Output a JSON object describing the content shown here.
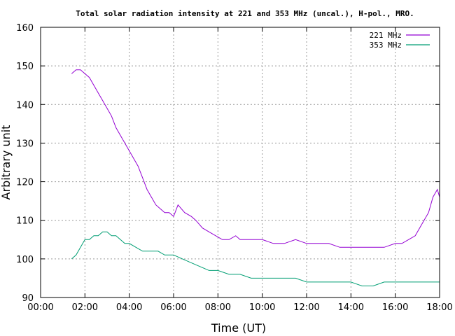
{
  "chart_data": {
    "type": "line",
    "title": "Total solar radiation intensity at 221 and 353 MHz (uncal.), H-pol., MRO.",
    "xlabel": "Time (UT)",
    "ylabel": "Arbitrary unit",
    "xlim": [
      0,
      18
    ],
    "ylim": [
      90,
      160
    ],
    "x_ticks": [
      "00:00",
      "02:00",
      "04:00",
      "06:00",
      "08:00",
      "10:00",
      "12:00",
      "14:00",
      "16:00",
      "18:00"
    ],
    "y_ticks": [
      90,
      100,
      110,
      120,
      130,
      140,
      150,
      160
    ],
    "grid": true,
    "legend_position": "top-right",
    "series": [
      {
        "name": "221 MHz",
        "color": "#9400d3",
        "x": [
          1.4,
          1.6,
          1.8,
          2.0,
          2.2,
          2.4,
          2.6,
          2.8,
          3.0,
          3.2,
          3.4,
          3.6,
          3.8,
          4.0,
          4.2,
          4.4,
          4.6,
          4.8,
          5.0,
          5.2,
          5.4,
          5.6,
          5.8,
          6.0,
          6.2,
          6.5,
          6.8,
          7.0,
          7.3,
          7.6,
          7.9,
          8.2,
          8.5,
          8.8,
          9.0,
          9.5,
          10.0,
          10.5,
          11.0,
          11.5,
          12.0,
          12.5,
          13.0,
          13.5,
          14.0,
          14.5,
          15.0,
          15.5,
          16.0,
          16.3,
          16.6,
          16.9,
          17.1,
          17.3,
          17.5,
          17.7,
          17.9,
          18.0
        ],
        "values": [
          148,
          149,
          149,
          148,
          147,
          145,
          143,
          141,
          139,
          137,
          134,
          132,
          130,
          128,
          126,
          124,
          121,
          118,
          116,
          114,
          113,
          112,
          112,
          111,
          114,
          112,
          111,
          110,
          108,
          107,
          106,
          105,
          105,
          106,
          105,
          105,
          105,
          104,
          104,
          105,
          104,
          104,
          104,
          103,
          103,
          103,
          103,
          103,
          104,
          104,
          105,
          106,
          108,
          110,
          112,
          116,
          118,
          116
        ]
      },
      {
        "name": "353 MHz",
        "color": "#009e73",
        "x": [
          1.4,
          1.6,
          1.8,
          2.0,
          2.2,
          2.4,
          2.6,
          2.8,
          3.0,
          3.2,
          3.4,
          3.6,
          3.8,
          4.0,
          4.3,
          4.6,
          5.0,
          5.3,
          5.6,
          6.0,
          6.4,
          6.8,
          7.2,
          7.6,
          8.0,
          8.5,
          9.0,
          9.5,
          10.0,
          10.5,
          11.0,
          11.5,
          12.0,
          12.5,
          13.0,
          13.5,
          14.0,
          14.5,
          15.0,
          15.5,
          16.0,
          16.5,
          17.0,
          17.5,
          18.0
        ],
        "values": [
          100,
          101,
          103,
          105,
          105,
          106,
          106,
          107,
          107,
          106,
          106,
          105,
          104,
          104,
          103,
          102,
          102,
          102,
          101,
          101,
          100,
          99,
          98,
          97,
          97,
          96,
          96,
          95,
          95,
          95,
          95,
          95,
          94,
          94,
          94,
          94,
          94,
          93,
          93,
          94,
          94,
          94,
          94,
          94,
          94
        ]
      }
    ]
  }
}
